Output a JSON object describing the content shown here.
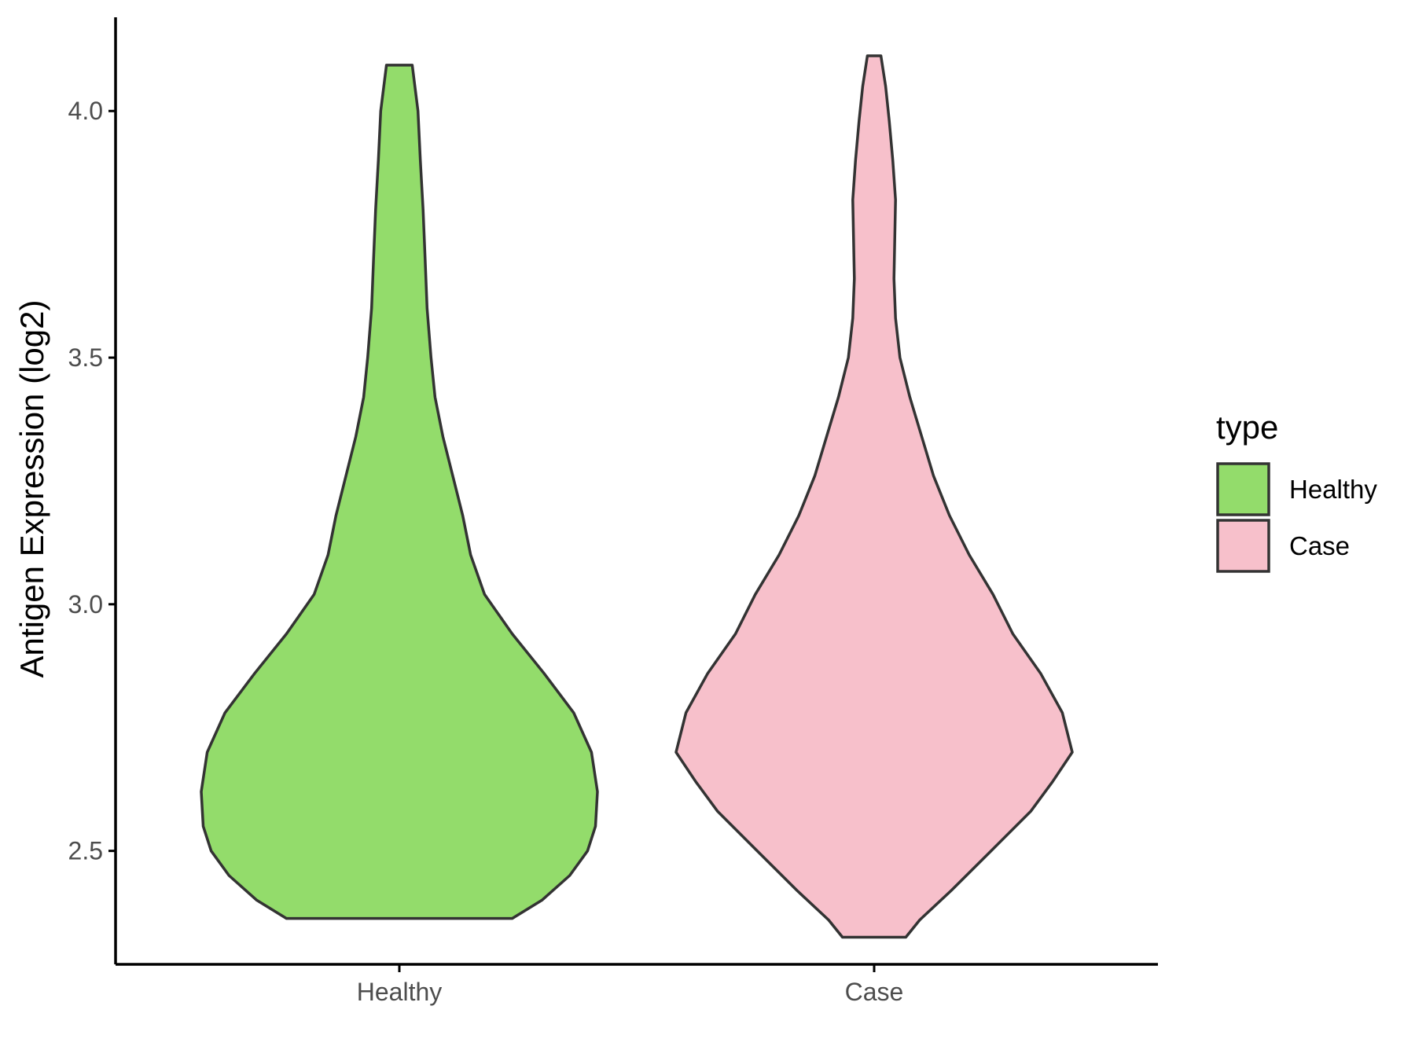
{
  "chart_data": {
    "type": "violin",
    "ylabel": "Antigen Expression (log2)",
    "xlabel": "",
    "ylim": [
      2.27,
      4.19
    ],
    "yticks": [
      2.5,
      3.0,
      3.5,
      4.0
    ],
    "ytick_labels": [
      "2.5",
      "3.0",
      "3.5",
      "4.0"
    ],
    "categories": [
      "Healthy",
      "Case"
    ],
    "grid": false,
    "legend": {
      "title": "type",
      "position": "right",
      "entries": [
        "Healthy",
        "Case"
      ]
    },
    "series": [
      {
        "name": "Healthy",
        "color": "#93dc6b",
        "min": 2.363,
        "max": 4.093,
        "profile": [
          [
            2.363,
            0.57
          ],
          [
            2.4,
            0.72
          ],
          [
            2.45,
            0.86
          ],
          [
            2.5,
            0.95
          ],
          [
            2.55,
            0.99
          ],
          [
            2.62,
            1.0
          ],
          [
            2.7,
            0.97
          ],
          [
            2.78,
            0.88
          ],
          [
            2.86,
            0.73
          ],
          [
            2.94,
            0.57
          ],
          [
            3.02,
            0.43
          ],
          [
            3.1,
            0.36
          ],
          [
            3.18,
            0.32
          ],
          [
            3.26,
            0.27
          ],
          [
            3.34,
            0.22
          ],
          [
            3.42,
            0.18
          ],
          [
            3.5,
            0.16
          ],
          [
            3.6,
            0.14
          ],
          [
            3.7,
            0.13
          ],
          [
            3.8,
            0.12
          ],
          [
            3.9,
            0.106
          ],
          [
            4.0,
            0.094
          ],
          [
            4.093,
            0.065
          ]
        ]
      },
      {
        "name": "Case",
        "color": "#f7c0cb",
        "min": 2.325,
        "max": 4.112,
        "profile": [
          [
            2.325,
            0.16
          ],
          [
            2.36,
            0.23
          ],
          [
            2.42,
            0.39
          ],
          [
            2.5,
            0.59
          ],
          [
            2.58,
            0.79
          ],
          [
            2.64,
            0.9
          ],
          [
            2.7,
            1.0
          ],
          [
            2.78,
            0.95
          ],
          [
            2.86,
            0.84
          ],
          [
            2.94,
            0.7
          ],
          [
            3.02,
            0.6
          ],
          [
            3.1,
            0.48
          ],
          [
            3.18,
            0.38
          ],
          [
            3.26,
            0.3
          ],
          [
            3.34,
            0.24
          ],
          [
            3.42,
            0.18
          ],
          [
            3.5,
            0.13
          ],
          [
            3.58,
            0.108
          ],
          [
            3.66,
            0.1
          ],
          [
            3.74,
            0.104
          ],
          [
            3.82,
            0.108
          ],
          [
            3.9,
            0.094
          ],
          [
            3.98,
            0.076
          ],
          [
            4.05,
            0.058
          ],
          [
            4.112,
            0.034
          ]
        ]
      }
    ]
  }
}
